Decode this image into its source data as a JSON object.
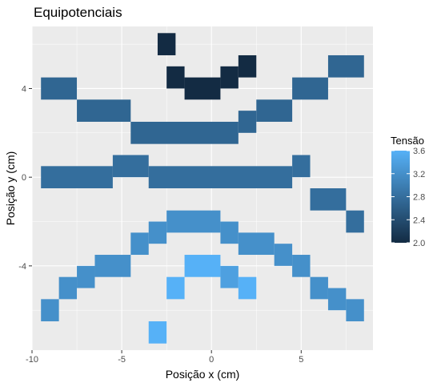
{
  "chart_data": {
    "type": "heatmap",
    "title": "Equipotenciais",
    "xlabel": "Posição x (cm)",
    "ylabel": "Posição y (cm)",
    "xlim": [
      -10,
      9
    ],
    "ylim": [
      -7.8,
      6.8
    ],
    "xticks": [
      -10,
      -5,
      0,
      5
    ],
    "yticks": [
      -4,
      0,
      4
    ],
    "xtick_labels": [
      "-10",
      "-5",
      "0",
      "5"
    ],
    "ytick_labels": [
      "-4",
      "0",
      "4"
    ],
    "grid": true,
    "legend": {
      "title": "Tensão",
      "position": "right",
      "min": 2.0,
      "max": 3.6,
      "ticks": [
        2.0,
        2.4,
        2.8,
        3.2,
        3.6
      ],
      "tick_labels": [
        "2.0",
        "2.4",
        "2.8",
        "3.2",
        "3.6"
      ],
      "color_low": "#132b43",
      "color_high": "#56b1f7"
    },
    "tiles": [
      {
        "x0": -3,
        "x1": -2,
        "y": 6,
        "value": 2.0
      },
      {
        "x0": -2.5,
        "x1": -1.5,
        "y": 4.5,
        "value": 2.0
      },
      {
        "x0": -1.5,
        "x1": 0.5,
        "y": 4,
        "value": 2.0
      },
      {
        "x0": 0.5,
        "x1": 1.5,
        "y": 4.5,
        "value": 2.0
      },
      {
        "x0": 1.5,
        "x1": 2.5,
        "y": 5,
        "value": 2.0
      },
      {
        "x0": -9.5,
        "x1": -7.5,
        "y": 4,
        "value": 2.7
      },
      {
        "x0": -7.5,
        "x1": -4.5,
        "y": 3,
        "value": 2.7
      },
      {
        "x0": -4.5,
        "x1": 1.5,
        "y": 2,
        "value": 2.7
      },
      {
        "x0": 1.5,
        "x1": 2.5,
        "y": 2.5,
        "value": 2.7
      },
      {
        "x0": 2.5,
        "x1": 4.5,
        "y": 3,
        "value": 2.7
      },
      {
        "x0": 4.5,
        "x1": 6.5,
        "y": 4,
        "value": 2.7
      },
      {
        "x0": 6.5,
        "x1": 8.5,
        "y": 5,
        "value": 2.7
      },
      {
        "x0": -9.5,
        "x1": -5.5,
        "y": 0,
        "value": 2.8
      },
      {
        "x0": -5.5,
        "x1": -3.5,
        "y": 0.5,
        "value": 2.8
      },
      {
        "x0": -3.5,
        "x1": 4.5,
        "y": 0,
        "value": 2.8
      },
      {
        "x0": 4.5,
        "x1": 5.5,
        "y": 0.5,
        "value": 2.8
      },
      {
        "x0": 5.5,
        "x1": 7.5,
        "y": -1,
        "value": 2.8
      },
      {
        "x0": 7.5,
        "x1": 8.5,
        "y": -2,
        "value": 2.8
      },
      {
        "x0": -2.5,
        "x1": 0.5,
        "y": -2,
        "value": 3.2
      },
      {
        "x0": -3.5,
        "x1": -2.5,
        "y": -2.5,
        "value": 3.2
      },
      {
        "x0": -4.5,
        "x1": -3.5,
        "y": -3,
        "value": 3.2
      },
      {
        "x0": -6.5,
        "x1": -4.5,
        "y": -4,
        "value": 3.2
      },
      {
        "x0": -7.5,
        "x1": -6.5,
        "y": -4.5,
        "value": 3.2
      },
      {
        "x0": -8.5,
        "x1": -7.5,
        "y": -5,
        "value": 3.2
      },
      {
        "x0": -9.5,
        "x1": -8.5,
        "y": -6,
        "value": 3.2
      },
      {
        "x0": 0.5,
        "x1": 1.5,
        "y": -2.5,
        "value": 3.2
      },
      {
        "x0": 1.5,
        "x1": 3.5,
        "y": -3,
        "value": 3.2
      },
      {
        "x0": 3.5,
        "x1": 4.5,
        "y": -3.5,
        "value": 3.2
      },
      {
        "x0": 4.5,
        "x1": 5.5,
        "y": -4,
        "value": 3.2
      },
      {
        "x0": 5.5,
        "x1": 6.5,
        "y": -5,
        "value": 3.2
      },
      {
        "x0": 6.5,
        "x1": 7.5,
        "y": -5.5,
        "value": 3.2
      },
      {
        "x0": 7.5,
        "x1": 8.5,
        "y": -6,
        "value": 3.2
      },
      {
        "x0": -1.5,
        "x1": 0.5,
        "y": -4,
        "value": 3.6
      },
      {
        "x0": 0.5,
        "x1": 1.5,
        "y": -4.5,
        "value": 3.4
      },
      {
        "x0": -2.5,
        "x1": -1.5,
        "y": -5,
        "value": 3.6
      },
      {
        "x0": 1.5,
        "x1": 2.5,
        "y": -5,
        "value": 3.6
      },
      {
        "x0": -3.5,
        "x1": -2.5,
        "y": -7,
        "value": 3.6
      }
    ]
  }
}
